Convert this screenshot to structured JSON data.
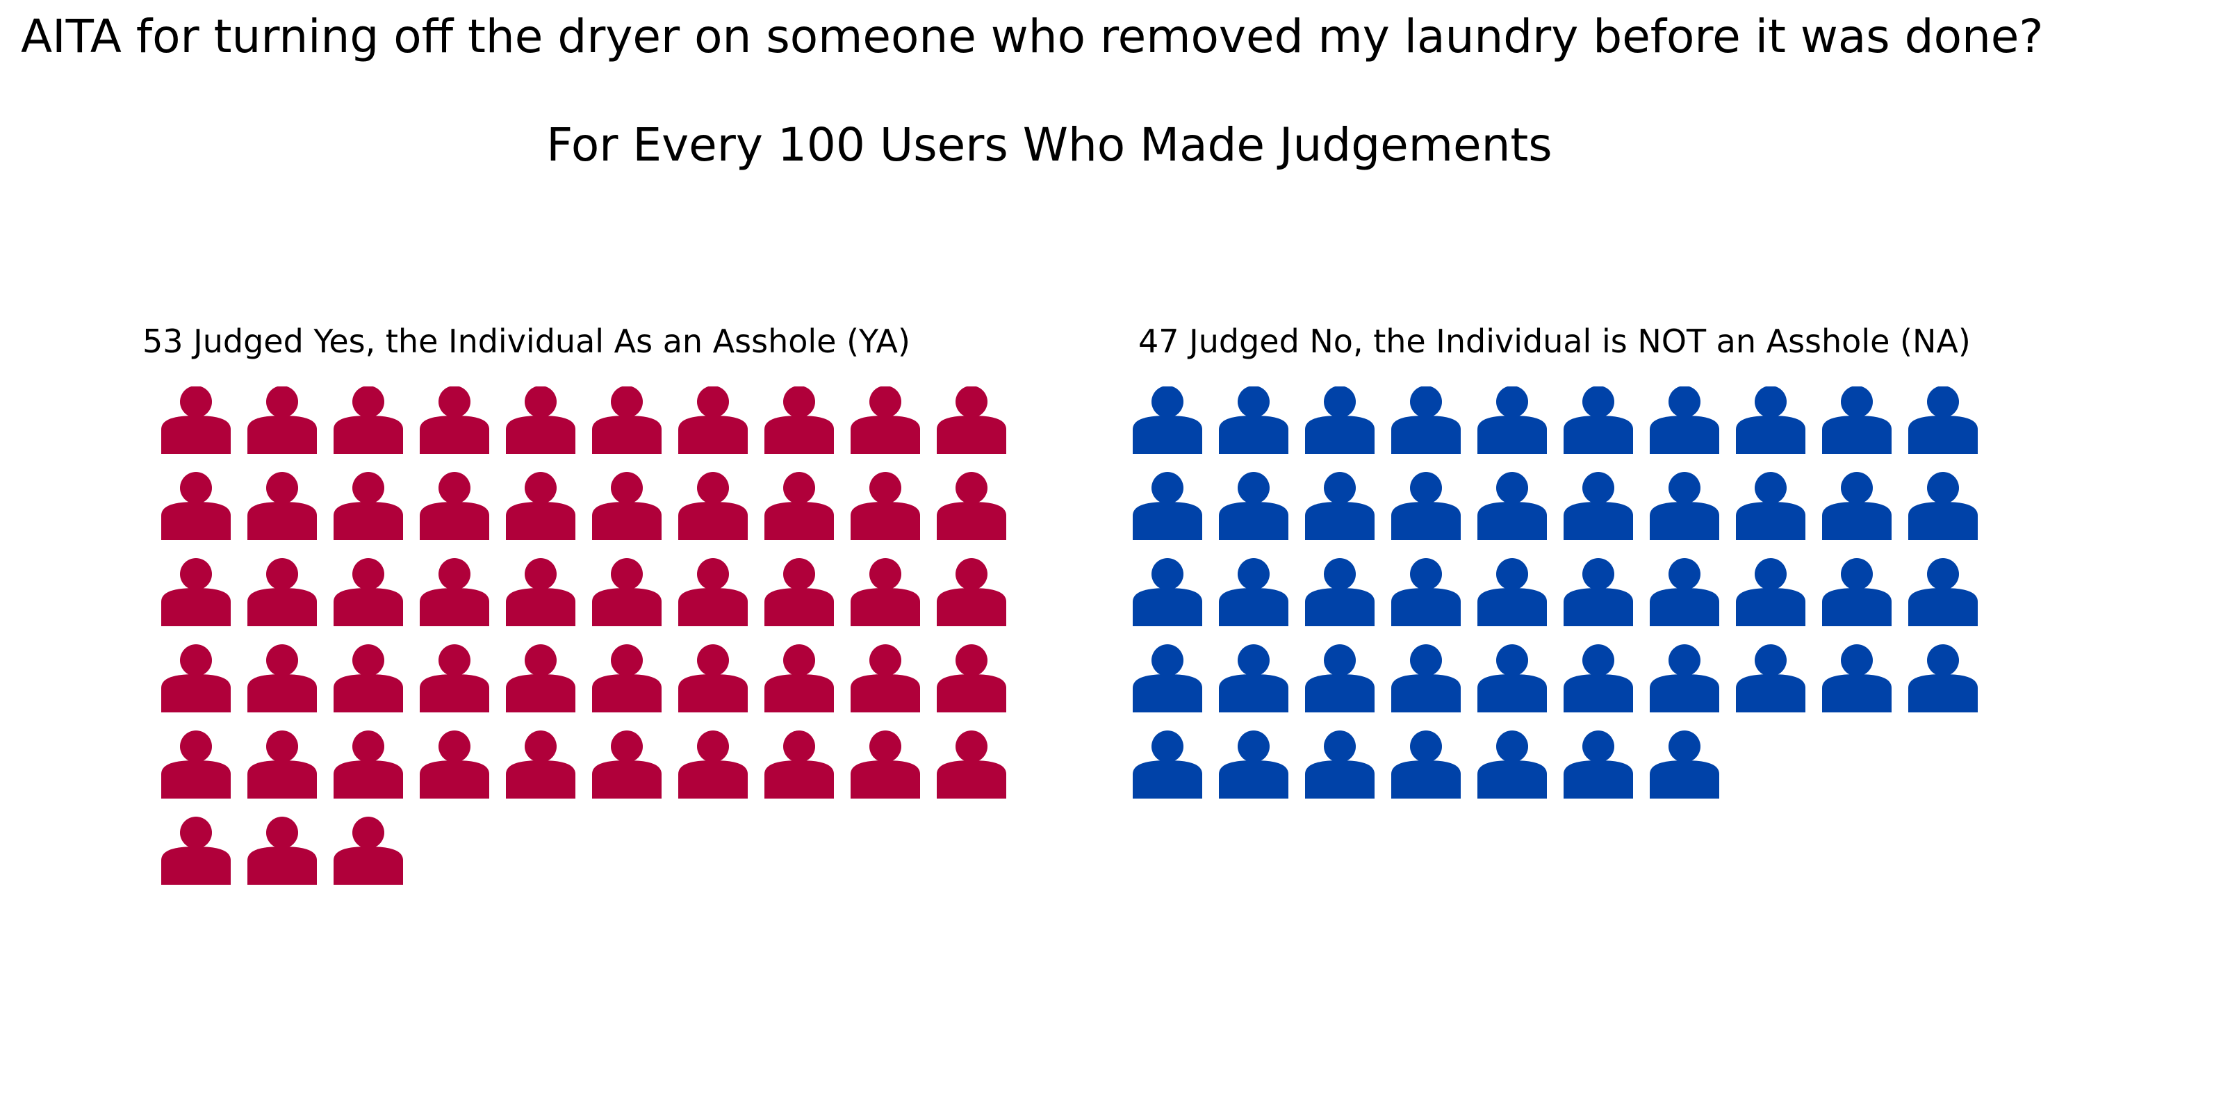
{
  "title": "AITA for turning off the dryer on someone who removed my laundry before it was done?",
  "subtitle": "For Every 100 Users Who Made Judgements",
  "chart_data": {
    "type": "waffle",
    "title": "AITA for turning off the dryer on someone who removed my laundry before it was done?",
    "subtitle": "For Every 100 Users Who Made Judgements",
    "icon": "person-icon",
    "icons_per_row": 10,
    "groups": [
      {
        "key": "ya",
        "label": "53 Judged Yes, the Individual As an Asshole (YA)",
        "value": 53,
        "color": "#b0003a"
      },
      {
        "key": "na",
        "label": "47 Judged No, the Individual is NOT an Asshole (NA)",
        "value": 47,
        "color": "#0042a8"
      }
    ]
  }
}
